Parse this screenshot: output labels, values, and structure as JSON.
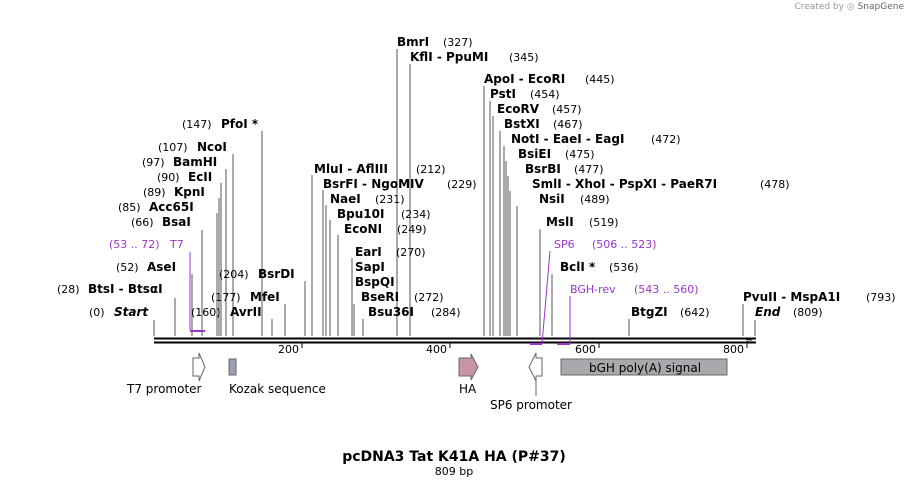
{
  "credit": {
    "text": "Created by",
    "brand": "SnapGene"
  },
  "title": "pcDNA3 Tat K41A HA (P#37)",
  "subtitle": "809 bp",
  "ticks": [
    "200",
    "400",
    "600",
    "800"
  ],
  "sites": [
    {
      "pos": "(0)",
      "name": "Start",
      "italic": true
    },
    {
      "pos": "(28)",
      "name": "BtsI  - BtsαI"
    },
    {
      "pos": "(52)",
      "name": "AseI"
    },
    {
      "pos": "(66)",
      "name": "BsaI"
    },
    {
      "pos": "(85)",
      "name": "Acc65I"
    },
    {
      "pos": "(89)",
      "name": "KpnI"
    },
    {
      "pos": "(90)",
      "name": "EcII"
    },
    {
      "pos": "(97)",
      "name": "BamHI"
    },
    {
      "pos": "(107)",
      "name": "NcoI"
    },
    {
      "pos": "(147)",
      "name": "PfoI *"
    },
    {
      "pos": "(160)",
      "name": "AvrII"
    },
    {
      "pos": "(177)",
      "name": "MfeI"
    },
    {
      "pos": "(204)",
      "name": "BsrDI"
    },
    {
      "pos": "(212)",
      "name": "MluI  - AflIII"
    },
    {
      "pos": "(229)",
      "name": "BsrFI  - NgoMIV"
    },
    {
      "pos": "(231)",
      "name": "NaeI"
    },
    {
      "pos": "(234)",
      "name": "Bpu10I"
    },
    {
      "pos": "(249)",
      "name": "EcoNI"
    },
    {
      "pos": "(270)",
      "name": "EarI"
    },
    {
      "pos": "",
      "name": "SapI"
    },
    {
      "pos": "",
      "name": "BspQI"
    },
    {
      "pos": "(272)",
      "name": "BseRI"
    },
    {
      "pos": "(284)",
      "name": "Bsu36I"
    },
    {
      "pos": "(327)",
      "name": "BmrI"
    },
    {
      "pos": "(345)",
      "name": "KflI  - PpuMI"
    },
    {
      "pos": "(445)",
      "name": "ApoI  - EcoRI"
    },
    {
      "pos": "(454)",
      "name": "PstI"
    },
    {
      "pos": "(457)",
      "name": "EcoRV"
    },
    {
      "pos": "(467)",
      "name": "BstXI"
    },
    {
      "pos": "(472)",
      "name": "NotI  - EaeI  - EagI"
    },
    {
      "pos": "(475)",
      "name": "BsiEI"
    },
    {
      "pos": "(477)",
      "name": "BsrBI"
    },
    {
      "pos": "(478)",
      "name": "SmlI  - XhoI  - PspXI  - PaeR7I"
    },
    {
      "pos": "(489)",
      "name": "NsiI"
    },
    {
      "pos": "(519)",
      "name": "MslI"
    },
    {
      "pos": "(536)",
      "name": "BclI *"
    },
    {
      "pos": "(642)",
      "name": "BtgZI"
    },
    {
      "pos": "(793)",
      "name": "PvuII  - MspA1I"
    },
    {
      "pos": "(809)",
      "name": "End",
      "italic": true
    }
  ],
  "primers": [
    {
      "name": "T7",
      "range": "(53 .. 72)"
    },
    {
      "name": "SP6",
      "range": "(506 .. 523)"
    },
    {
      "name": "BGH-rev",
      "range": "(543 .. 560)"
    }
  ],
  "features": [
    {
      "name": "T7 promoter",
      "color": "#ffffff"
    },
    {
      "name": "Kozak sequence",
      "color": "#9aa0b4"
    },
    {
      "name": "HA",
      "color": "#c994aa"
    },
    {
      "name": "SP6 promoter",
      "color": "#ffffff"
    },
    {
      "name": "bGH poly(A) signal",
      "color": "#a7a9ac"
    }
  ],
  "colors": {
    "primer": "#9a36c9",
    "backbone": "#000000"
  }
}
